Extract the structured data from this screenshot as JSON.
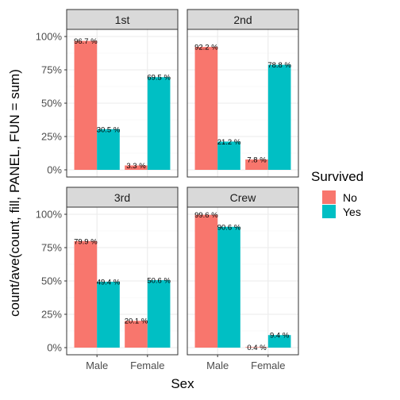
{
  "chart_data": {
    "type": "bar",
    "layout": "faceted-grid-2x2",
    "categories": [
      "Male",
      "Female"
    ],
    "xlabel": "Sex",
    "ylabel": "count/ave(count, fill, PANEL, FUN = sum)",
    "ylim": [
      0,
      1
    ],
    "yticks": [
      {
        "value": 0,
        "label": "0%"
      },
      {
        "value": 0.25,
        "label": "25%"
      },
      {
        "value": 0.5,
        "label": "50%"
      },
      {
        "value": 0.75,
        "label": "75%"
      },
      {
        "value": 1,
        "label": "100%"
      }
    ],
    "grid": true,
    "legend": {
      "title": "Survived",
      "position": "right",
      "entries": [
        {
          "name": "No",
          "color": "#F8766D"
        },
        {
          "name": "Yes",
          "color": "#00BFC4"
        }
      ]
    },
    "panels": [
      {
        "strip": "1st",
        "series": [
          {
            "name": "No",
            "values": [
              0.967,
              0.033
            ],
            "labels": [
              "96.7 %",
              "3.3 %"
            ]
          },
          {
            "name": "Yes",
            "values": [
              0.305,
              0.695
            ],
            "labels": [
              "30.5 %",
              "69.5 %"
            ]
          }
        ]
      },
      {
        "strip": "2nd",
        "series": [
          {
            "name": "No",
            "values": [
              0.922,
              0.078
            ],
            "labels": [
              "92.2 %",
              "7.8 %"
            ]
          },
          {
            "name": "Yes",
            "values": [
              0.212,
              0.788
            ],
            "labels": [
              "21.2 %",
              "78.8 %"
            ]
          }
        ]
      },
      {
        "strip": "3rd",
        "series": [
          {
            "name": "No",
            "values": [
              0.799,
              0.201
            ],
            "labels": [
              "79.9 %",
              "20.1 %"
            ]
          },
          {
            "name": "Yes",
            "values": [
              0.494,
              0.506
            ],
            "labels": [
              "49.4 %",
              "50.6 %"
            ]
          }
        ]
      },
      {
        "strip": "Crew",
        "series": [
          {
            "name": "No",
            "values": [
              0.996,
              0.004
            ],
            "labels": [
              "99.6 %",
              "0.4 %"
            ]
          },
          {
            "name": "Yes",
            "values": [
              0.906,
              0.094
            ],
            "labels": [
              "90.6 %",
              "9.4 %"
            ]
          }
        ]
      }
    ]
  }
}
